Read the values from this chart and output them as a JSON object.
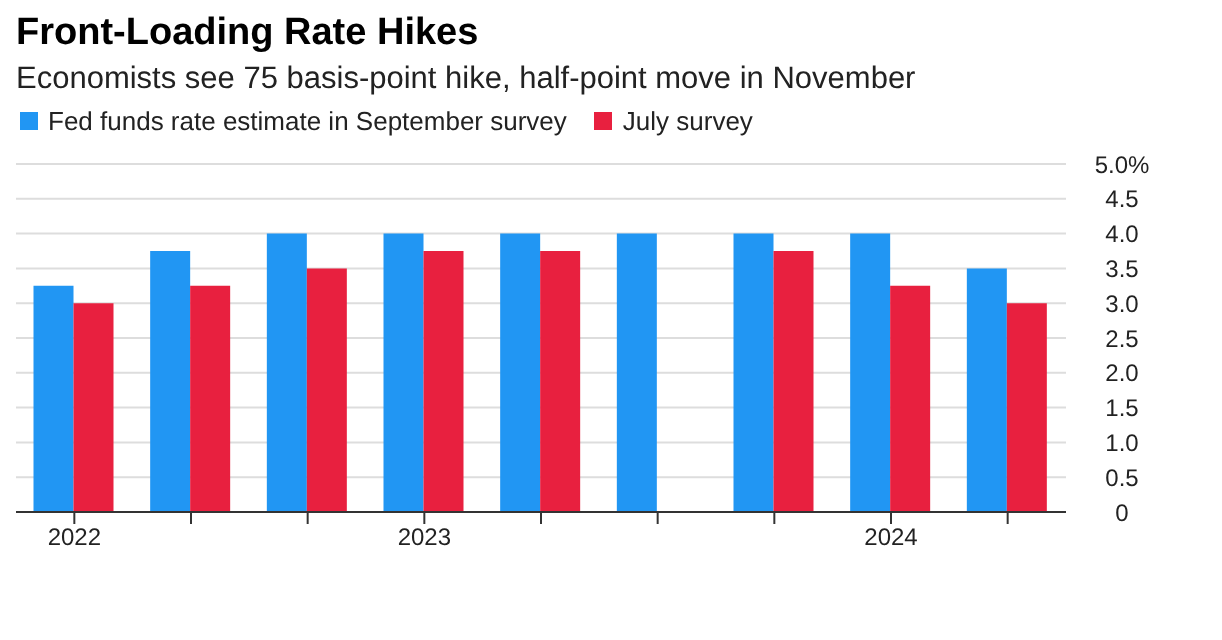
{
  "chart_data": {
    "type": "bar",
    "title": "Front-Loading Rate Hikes",
    "subtitle": "Economists see 75 basis-point hike, half-point move in November",
    "categories": [
      "2022",
      null,
      null,
      "2023",
      null,
      null,
      null,
      "2024",
      null
    ],
    "series": [
      {
        "name": "Fed funds rate estimate in September survey",
        "color": "#2196f3",
        "values": [
          3.25,
          3.75,
          4.0,
          4.0,
          4.0,
          4.0,
          4.0,
          4.0,
          3.5
        ]
      },
      {
        "name": "July survey",
        "color": "#e8203f",
        "values": [
          3.0,
          3.25,
          3.5,
          3.75,
          3.75,
          0,
          3.75,
          3.25,
          3.0
        ]
      }
    ],
    "ylim": [
      0,
      5
    ],
    "yticks": [
      0,
      0.5,
      {
        "value": 1,
        "label": "1.0"
      },
      1.5,
      {
        "value": 2,
        "label": "2.0"
      },
      2.5,
      {
        "value": 3,
        "label": "3.0"
      },
      3.5,
      {
        "value": 4,
        "label": "4.0"
      },
      4.5,
      {
        "value": 5,
        "label": "5.0%"
      }
    ],
    "grid": "y",
    "legend": "top left"
  }
}
